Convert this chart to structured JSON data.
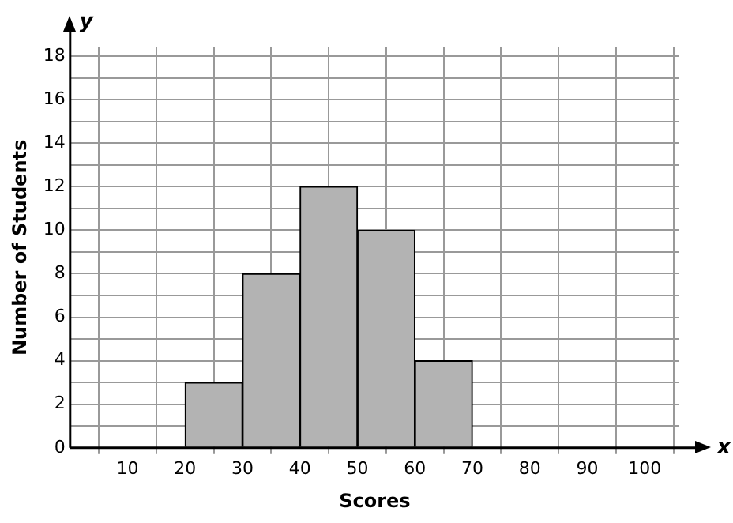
{
  "chart_data": {
    "type": "histogram",
    "xlabel": "Scores",
    "ylabel": "Number of Students",
    "bins": [
      20,
      30,
      40,
      50,
      60,
      70
    ],
    "values": [
      3,
      8,
      12,
      10,
      4
    ],
    "color": "#b3b3b3",
    "xlim": [
      0,
      106
    ],
    "xticks": [
      10,
      20,
      30,
      40,
      50,
      60,
      70,
      80,
      90,
      100
    ],
    "ylim": [
      0,
      18.4
    ],
    "yticks": [
      0,
      {
        "value": 1,
        "label": null
      },
      2,
      {
        "value": 3,
        "label": null
      },
      4,
      {
        "value": 5,
        "label": null
      },
      6,
      {
        "value": 7,
        "label": null
      },
      8,
      {
        "value": 9,
        "label": null
      },
      10,
      {
        "value": 11,
        "label": null
      },
      12,
      {
        "value": 13,
        "label": null
      },
      14,
      {
        "value": 15,
        "label": null
      },
      16,
      {
        "value": 17,
        "label": null
      },
      18
    ],
    "grid": true,
    "legend": false,
    "annotations": [
      "x",
      "y"
    ]
  }
}
